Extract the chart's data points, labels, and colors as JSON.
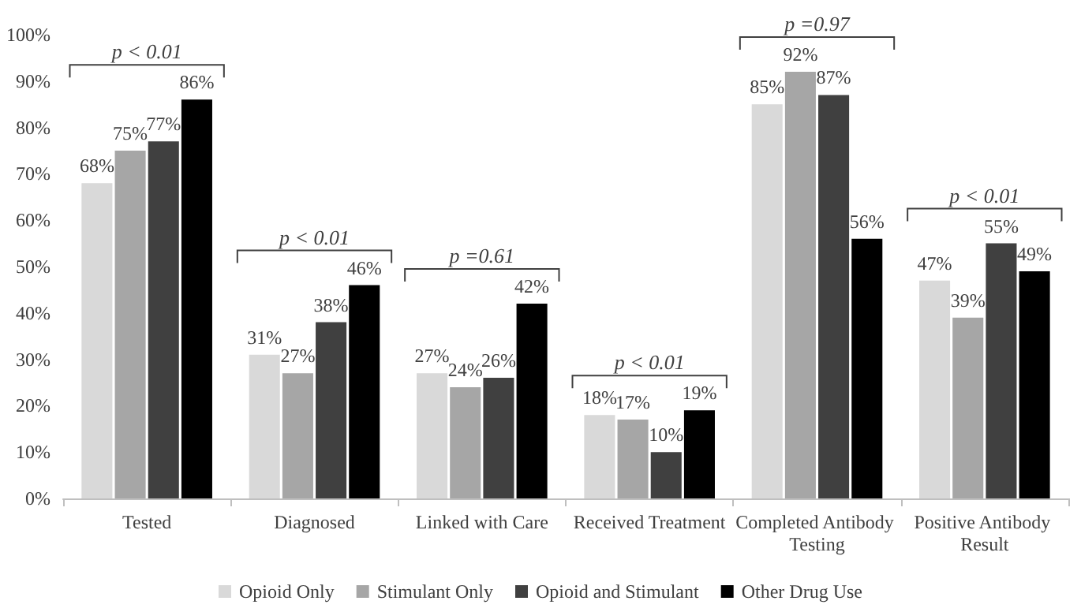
{
  "chart_data": {
    "type": "bar",
    "categories": [
      "Tested",
      "Diagnosed",
      "Linked with Care",
      "Received Treatment",
      "Completed Antibody Testing",
      "Positive Antibody Result"
    ],
    "series": [
      {
        "name": "Opioid Only",
        "color": "#d9d9d9",
        "values": [
          68,
          31,
          27,
          18,
          85,
          47
        ],
        "value_labels": [
          "68%",
          "31%",
          "27%",
          "18%",
          "85%",
          "47%"
        ]
      },
      {
        "name": "Stimulant Only",
        "color": "#a6a6a6",
        "values": [
          75,
          27,
          24,
          17,
          92,
          39
        ],
        "value_labels": [
          "75%",
          "27%",
          "24%",
          "17%",
          "92%",
          "39%"
        ]
      },
      {
        "name": "Opioid and Stimulant",
        "color": "#404040",
        "values": [
          77,
          38,
          26,
          10,
          87,
          55
        ],
        "value_labels": [
          "77%",
          "38%",
          "26%",
          "10%",
          "87%",
          "55%"
        ]
      },
      {
        "name": "Other Drug Use",
        "color": "#000000",
        "values": [
          86,
          46,
          42,
          19,
          56,
          49
        ],
        "value_labels": [
          "86%",
          "46%",
          "42%",
          "19%",
          "56%",
          "49%"
        ]
      }
    ],
    "ylim": [
      0,
      100
    ],
    "yticks": [
      {
        "value": 0,
        "label": "0%"
      },
      {
        "value": 10,
        "label": "10%"
      },
      {
        "value": 20,
        "label": "20%"
      },
      {
        "value": 30,
        "label": "30%"
      },
      {
        "value": 40,
        "label": "40%"
      },
      {
        "value": 50,
        "label": "50%"
      },
      {
        "value": 60,
        "label": "60%"
      },
      {
        "value": 70,
        "label": "70%"
      },
      {
        "value": 80,
        "label": "80%"
      },
      {
        "value": 90,
        "label": "90%"
      },
      {
        "value": 100,
        "label": "100%"
      }
    ],
    "annotations": [
      "p < 0.01",
      "p < 0.01",
      "p =0.61",
      "p < 0.01",
      "p =0.97",
      "p < 0.01"
    ],
    "grid": false,
    "legend": "bottom"
  }
}
